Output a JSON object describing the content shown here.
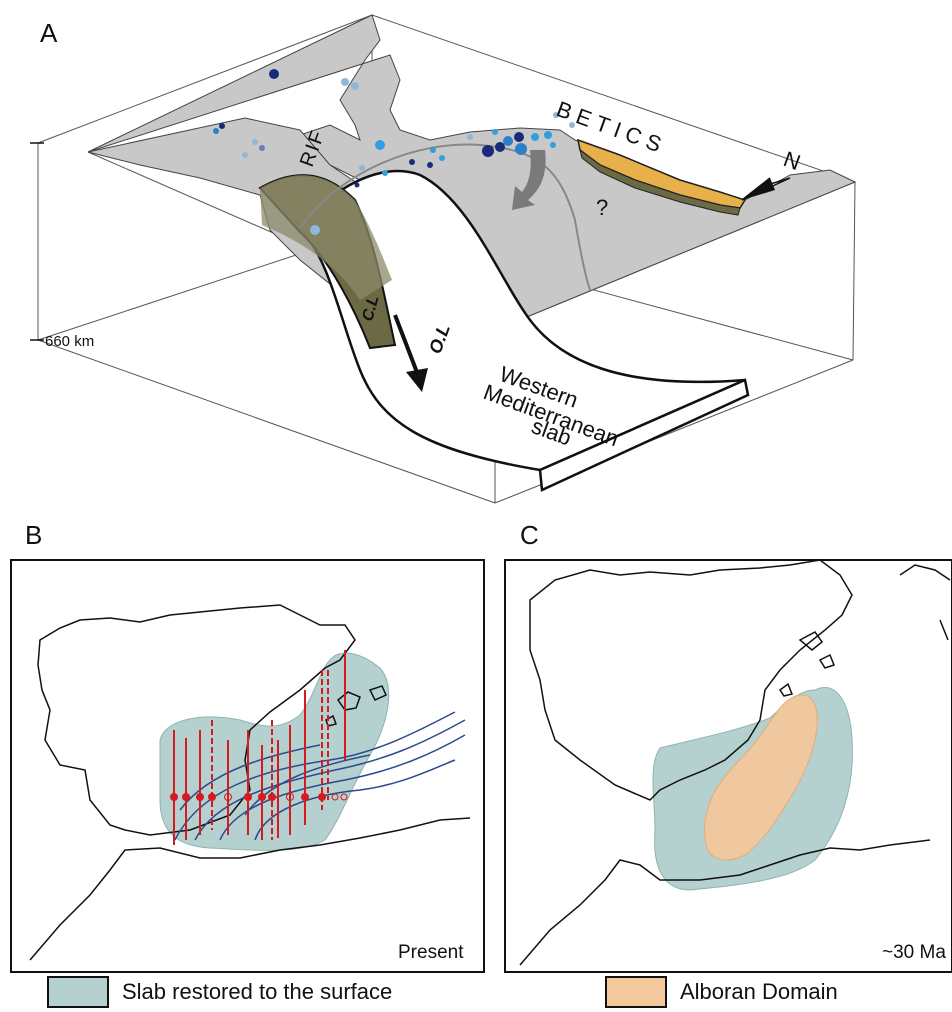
{
  "panels": {
    "a_letter": "A",
    "b_letter": "B",
    "c_letter": "C"
  },
  "block": {
    "depth_label": "660 km",
    "region_north": "BETICS",
    "region_south": "RIF",
    "north_arrow": "N",
    "question_mark": "?",
    "continental_lithosphere": "C.L",
    "oceanic_lithosphere": "O.L",
    "slab_label_1": "Western",
    "slab_label_2": "Mediterranean",
    "slab_label_3": "slab"
  },
  "maps": {
    "present_label": "Present",
    "past_label": "~30 Ma"
  },
  "legend": {
    "slab_restored": "Slab restored to the surface",
    "alboran_domain": "Alboran Domain"
  },
  "colors": {
    "land_grey": "#c8c8c8",
    "slab_restored": "#b5d1cf",
    "alboran_domain": "#f5c89b",
    "continental_lithosphere": "#6b6a45",
    "alboran_block": "#e8b04a",
    "seismic_red": "#d71920",
    "trajectory_blue": "#2b4a8c",
    "quake_dark": "#1a2a7a",
    "quake_mid": "#2f7fc8",
    "quake_light": "#8fb8d8"
  }
}
